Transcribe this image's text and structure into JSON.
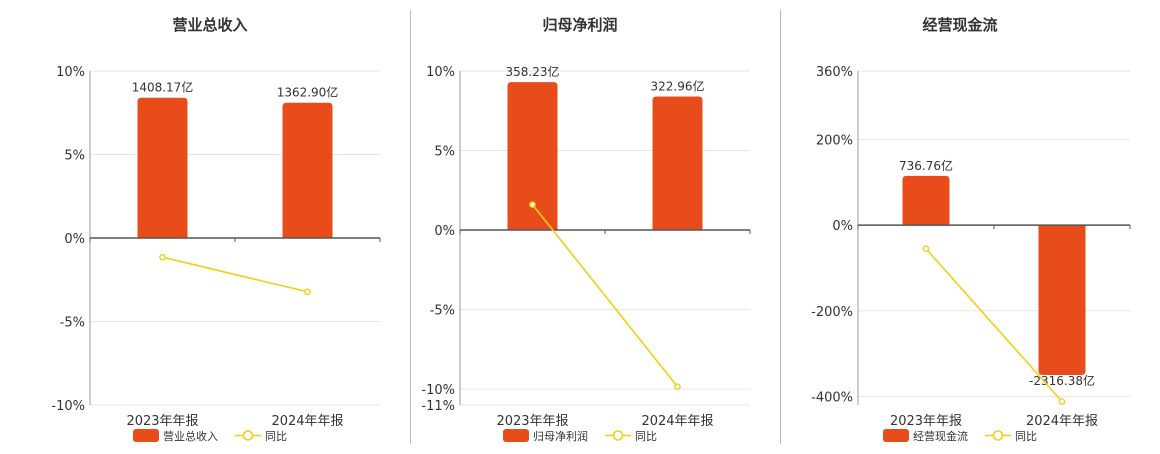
{
  "panel_titles": [
    "营业总收入",
    "归母净利润",
    "经营现金流"
  ],
  "legend_growth_label": "同比",
  "colors": {
    "bar": "#e84c1b",
    "line": "#f2cf14",
    "axis": "#555555",
    "grid": "#e6e6e6",
    "divider": "#bbbbbb"
  },
  "chart_data": [
    {
      "type": "bar",
      "title": "营业总收入",
      "categories": [
        "2023年年报",
        "2024年年报"
      ],
      "series": [
        {
          "name": "营业总收入",
          "type": "bar",
          "values": [
            8.4,
            8.1
          ],
          "labels": [
            "1408.17亿",
            "1362.90亿"
          ]
        },
        {
          "name": "同比",
          "type": "line",
          "values": [
            -1.15,
            -3.22
          ]
        }
      ],
      "yticks": [
        "10%",
        "5%",
        "0%",
        "-5%",
        "-10%"
      ],
      "ylim": [
        -10,
        10
      ],
      "grid": true,
      "legend": "bottom"
    },
    {
      "type": "bar",
      "title": "归母净利润",
      "categories": [
        "2023年年报",
        "2024年年报"
      ],
      "series": [
        {
          "name": "归母净利润",
          "type": "bar",
          "values": [
            9.3,
            8.4
          ],
          "labels": [
            "358.23亿",
            "322.96亿"
          ]
        },
        {
          "name": "同比",
          "type": "line",
          "values": [
            1.6,
            -9.85
          ]
        }
      ],
      "yticks": [
        "10%",
        "5%",
        "0%",
        "-5%",
        "-10%",
        "-11%"
      ],
      "ylim": [
        -11,
        10
      ],
      "grid": true,
      "legend": "bottom"
    },
    {
      "type": "bar",
      "title": "经营现金流",
      "categories": [
        "2023年年报",
        "2024年年报"
      ],
      "series": [
        {
          "name": "经营现金流",
          "type": "bar",
          "values": [
            115,
            -350
          ],
          "labels": [
            "736.76亿",
            "-2316.38亿"
          ]
        },
        {
          "name": "同比",
          "type": "line",
          "values": [
            -55,
            -412
          ]
        }
      ],
      "yticks": [
        "360%",
        "200%",
        "0%",
        "-200%",
        "-400%"
      ],
      "ylim": [
        -420,
        360
      ],
      "grid": true,
      "legend": "bottom"
    }
  ]
}
